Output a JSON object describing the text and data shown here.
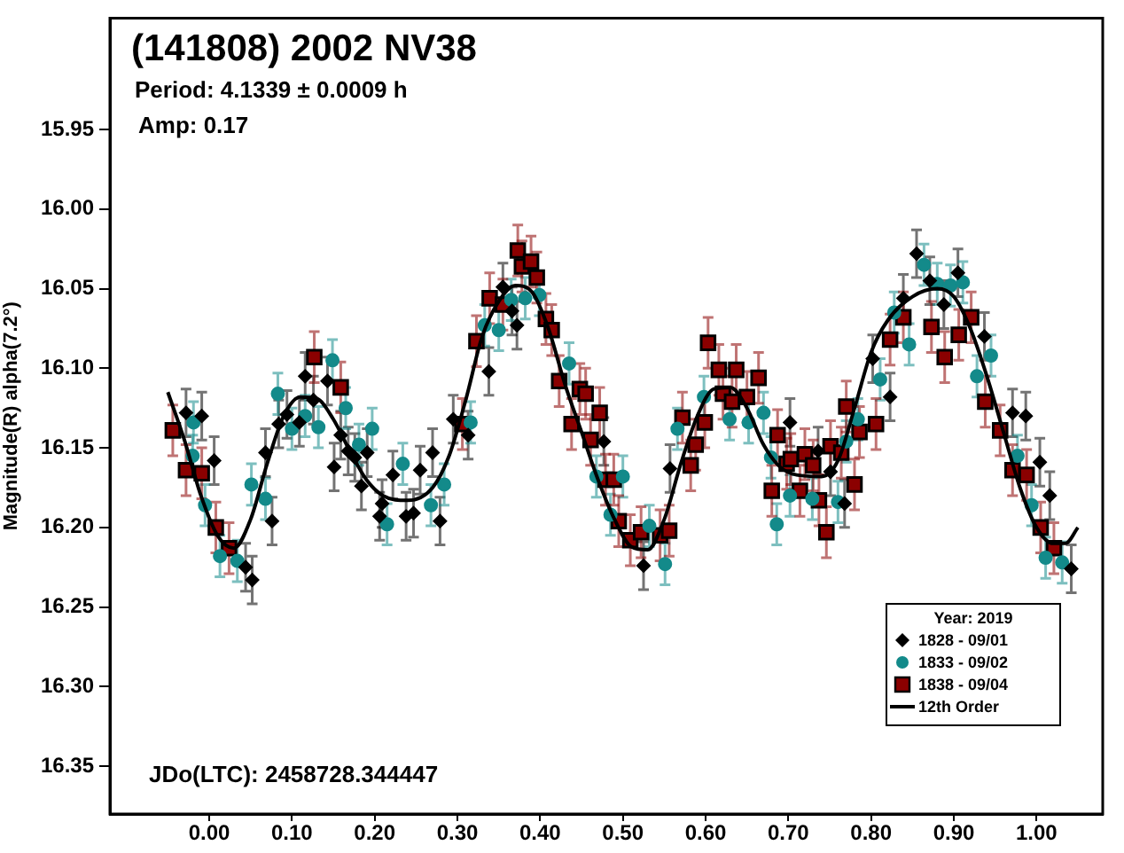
{
  "chart_data": {
    "type": "scatter",
    "title": "(141808) 2002 NV38",
    "subtitle": "Period: 4.1339 ± 0.0009 h",
    "annotations": [
      "Amp: 0.17",
      "JDo(LTC): 2458728.344447"
    ],
    "ylabel": "Magnitude(R) alpha(7.2°)",
    "legend_title": "Year: 2019",
    "legend": "bottom right",
    "grid": false,
    "xlim": [
      -0.12,
      1.08
    ],
    "xticks": [
      {
        "value": 0,
        "label": "0.00"
      },
      {
        "value": 0.1,
        "label": "0.10"
      },
      {
        "value": 0.2,
        "label": "0.20"
      },
      {
        "value": 0.3,
        "label": "0.30"
      },
      {
        "value": 0.4,
        "label": "0.40"
      },
      {
        "value": 0.5,
        "label": "0.50"
      },
      {
        "value": 0.6,
        "label": "0.60"
      },
      {
        "value": 0.7,
        "label": "0.70"
      },
      {
        "value": 0.8,
        "label": "0.80"
      },
      {
        "value": 0.9,
        "label": "0.90"
      },
      {
        "value": 1,
        "label": "1.00"
      }
    ],
    "ylim": [
      16.38,
      15.88
    ],
    "yticks": [
      15.95,
      {
        "value": 16,
        "label": "16.00"
      },
      16.05,
      {
        "value": 16.1,
        "label": "16.10"
      },
      16.15,
      {
        "value": 16.2,
        "label": "16.20"
      },
      16.25,
      {
        "value": 16.3,
        "label": "16.30"
      },
      16.35
    ],
    "series": [
      {
        "name": "1828 - 09/01",
        "marker": "diamond",
        "color": "#000000",
        "x": [
          -0.028,
          -0.009,
          0.006,
          0.044,
          0.052,
          0.068,
          0.076,
          0.084,
          0.094,
          0.109,
          0.116,
          0.126,
          0.143,
          0.151,
          0.159,
          0.168,
          0.176,
          0.184,
          0.191,
          0.206,
          0.209,
          0.222,
          0.238,
          0.247,
          0.255,
          0.27,
          0.279,
          0.295,
          0.313,
          0.338,
          0.355,
          0.366,
          0.372,
          0.477,
          0.525,
          0.557,
          0.702,
          0.736,
          0.751,
          0.768,
          0.802,
          0.823,
          0.839,
          0.855,
          0.871,
          0.888,
          0.905,
          0.937,
          0.971,
          0.987,
          1.004,
          1.016,
          1.042
        ],
        "values": [
          16.128,
          16.13,
          16.158,
          16.225,
          16.233,
          16.153,
          16.196,
          16.135,
          16.129,
          16.134,
          16.105,
          16.12,
          16.108,
          16.162,
          16.142,
          16.152,
          16.156,
          16.174,
          16.153,
          16.193,
          16.185,
          16.167,
          16.193,
          16.191,
          16.164,
          16.153,
          16.196,
          16.132,
          16.142,
          16.102,
          16.049,
          16.064,
          16.073,
          16.146,
          16.224,
          16.163,
          16.134,
          16.152,
          16.165,
          16.185,
          16.094,
          16.118,
          16.056,
          16.028,
          16.045,
          16.06,
          16.04,
          16.08,
          16.128,
          16.13,
          16.159,
          16.18,
          16.226
        ],
        "errors": [
          0.015,
          0.015,
          0.015,
          0.015,
          0.015,
          0.015,
          0.015,
          0.015,
          0.015,
          0.015,
          0.015,
          0.015,
          0.015,
          0.015,
          0.015,
          0.015,
          0.015,
          0.015,
          0.015,
          0.015,
          0.015,
          0.015,
          0.015,
          0.015,
          0.015,
          0.015,
          0.015,
          0.015,
          0.015,
          0.015,
          0.015,
          0.015,
          0.015,
          0.015,
          0.015,
          0.015,
          0.015,
          0.015,
          0.015,
          0.015,
          0.015,
          0.015,
          0.015,
          0.015,
          0.015,
          0.015,
          0.015,
          0.015,
          0.015,
          0.015,
          0.015,
          0.015,
          0.015
        ]
      },
      {
        "name": "1833 - 09/02",
        "marker": "circle",
        "color": "#138a8a",
        "x": [
          -0.019,
          -0.02,
          -0.005,
          0.013,
          0.034,
          0.051,
          0.068,
          0.083,
          0.1,
          0.116,
          0.132,
          0.149,
          0.165,
          0.181,
          0.197,
          0.215,
          0.234,
          0.268,
          0.284,
          0.316,
          0.333,
          0.35,
          0.365,
          0.382,
          0.399,
          0.435,
          0.468,
          0.485,
          0.5,
          0.532,
          0.551,
          0.566,
          0.598,
          0.629,
          0.652,
          0.67,
          0.679,
          0.686,
          0.702,
          0.729,
          0.76,
          0.77,
          0.784,
          0.811,
          0.828,
          0.846,
          0.864,
          0.88,
          0.896,
          0.911,
          0.928,
          0.945,
          0.977,
          0.994,
          1.011,
          1.031
        ],
        "values": [
          16.134,
          16.155,
          16.186,
          16.218,
          16.221,
          16.173,
          16.182,
          16.116,
          16.138,
          16.13,
          16.137,
          16.095,
          16.125,
          16.148,
          16.138,
          16.198,
          16.16,
          16.186,
          16.173,
          16.134,
          16.073,
          16.076,
          16.057,
          16.056,
          16.054,
          16.097,
          16.168,
          16.192,
          16.168,
          16.199,
          16.223,
          16.138,
          16.118,
          16.132,
          16.134,
          16.128,
          16.156,
          16.198,
          16.18,
          16.182,
          16.184,
          16.146,
          16.132,
          16.107,
          16.065,
          16.085,
          16.035,
          16.047,
          16.048,
          16.046,
          16.105,
          16.092,
          16.155,
          16.186,
          16.219,
          16.222
        ],
        "errors": [
          0.013,
          0.013,
          0.013,
          0.013,
          0.013,
          0.013,
          0.013,
          0.013,
          0.013,
          0.013,
          0.013,
          0.013,
          0.013,
          0.013,
          0.013,
          0.013,
          0.013,
          0.013,
          0.013,
          0.013,
          0.013,
          0.013,
          0.013,
          0.013,
          0.013,
          0.013,
          0.013,
          0.013,
          0.013,
          0.013,
          0.013,
          0.013,
          0.013,
          0.013,
          0.013,
          0.013,
          0.013,
          0.013,
          0.013,
          0.013,
          0.013,
          0.013,
          0.013,
          0.013,
          0.013,
          0.013,
          0.013,
          0.013,
          0.013,
          0.013,
          0.013,
          0.013,
          0.013,
          0.013,
          0.013,
          0.013
        ]
      },
      {
        "name": "1838 - 09/04",
        "marker": "square",
        "color": "#8b0000",
        "x": [
          -0.044,
          -0.028,
          -0.009,
          0.008,
          0.024,
          0.127,
          0.159,
          0.306,
          0.323,
          0.339,
          0.355,
          0.373,
          0.378,
          0.389,
          0.396,
          0.407,
          0.414,
          0.423,
          0.438,
          0.448,
          0.455,
          0.472,
          0.461,
          0.479,
          0.489,
          0.495,
          0.509,
          0.522,
          0.545,
          0.556,
          0.572,
          0.582,
          0.588,
          0.599,
          0.603,
          0.616,
          0.621,
          0.632,
          0.637,
          0.65,
          0.664,
          0.68,
          0.687,
          0.698,
          0.703,
          0.714,
          0.72,
          0.73,
          0.737,
          0.746,
          0.751,
          0.764,
          0.77,
          0.78,
          0.786,
          0.806,
          0.823,
          0.839,
          0.873,
          0.889,
          0.906,
          0.921,
          0.938,
          0.956,
          0.971,
          0.988,
          1.005,
          1.021
        ],
        "values": [
          16.139,
          16.164,
          16.166,
          16.2,
          16.213,
          16.093,
          16.112,
          16.135,
          16.083,
          16.056,
          16.06,
          16.026,
          16.036,
          16.033,
          16.043,
          16.069,
          16.076,
          16.108,
          16.135,
          16.113,
          16.116,
          16.128,
          16.145,
          16.17,
          16.17,
          16.196,
          16.208,
          16.203,
          16.205,
          16.202,
          16.131,
          16.161,
          16.148,
          16.134,
          16.084,
          16.101,
          16.116,
          16.121,
          16.101,
          16.118,
          16.106,
          16.177,
          16.142,
          16.16,
          16.157,
          16.177,
          16.154,
          16.161,
          16.183,
          16.203,
          16.149,
          16.153,
          16.124,
          16.173,
          16.14,
          16.135,
          16.082,
          16.068,
          16.074,
          16.093,
          16.079,
          16.068,
          16.121,
          16.139,
          16.164,
          16.167,
          16.2,
          16.213
        ],
        "errors": [
          0.016,
          0.016,
          0.016,
          0.016,
          0.016,
          0.016,
          0.016,
          0.016,
          0.016,
          0.016,
          0.016,
          0.016,
          0.016,
          0.016,
          0.016,
          0.016,
          0.016,
          0.016,
          0.016,
          0.016,
          0.016,
          0.016,
          0.016,
          0.016,
          0.016,
          0.016,
          0.016,
          0.016,
          0.016,
          0.016,
          0.016,
          0.016,
          0.016,
          0.016,
          0.016,
          0.016,
          0.016,
          0.016,
          0.016,
          0.016,
          0.016,
          0.016,
          0.016,
          0.016,
          0.016,
          0.016,
          0.016,
          0.016,
          0.016,
          0.016,
          0.016,
          0.016,
          0.016,
          0.016,
          0.016,
          0.016,
          0.016,
          0.016,
          0.016,
          0.016,
          0.016,
          0.016,
          0.016,
          0.016,
          0.016,
          0.016,
          0.016,
          0.016
        ]
      },
      {
        "name": "12th Order",
        "type": "line",
        "marker": "none",
        "color": "#000000",
        "x": [
          -0.05,
          -0.03,
          -0.01,
          0.01,
          0.03,
          0.05,
          0.07,
          0.09,
          0.11,
          0.13,
          0.15,
          0.17,
          0.19,
          0.21,
          0.24,
          0.27,
          0.29,
          0.31,
          0.33,
          0.35,
          0.37,
          0.39,
          0.41,
          0.43,
          0.45,
          0.47,
          0.49,
          0.51,
          0.53,
          0.55,
          0.57,
          0.59,
          0.61,
          0.63,
          0.65,
          0.67,
          0.69,
          0.71,
          0.74,
          0.76,
          0.78,
          0.8,
          0.82,
          0.85,
          0.88,
          0.9,
          0.92,
          0.94,
          0.96,
          0.98,
          1,
          1.02,
          1.035,
          1.05
        ],
        "values": [
          16.115,
          16.145,
          16.18,
          16.205,
          16.213,
          16.195,
          16.16,
          16.13,
          16.118,
          16.119,
          16.132,
          16.152,
          16.17,
          16.18,
          16.183,
          16.175,
          16.155,
          16.12,
          16.08,
          16.058,
          16.048,
          16.052,
          16.075,
          16.11,
          16.14,
          16.17,
          16.195,
          16.212,
          16.214,
          16.195,
          16.16,
          16.13,
          16.113,
          16.112,
          16.125,
          16.148,
          16.162,
          16.167,
          16.168,
          16.158,
          16.125,
          16.09,
          16.07,
          16.055,
          16.05,
          16.055,
          16.075,
          16.105,
          16.14,
          16.175,
          16.2,
          16.21,
          16.21,
          16.2
        ]
      }
    ]
  }
}
